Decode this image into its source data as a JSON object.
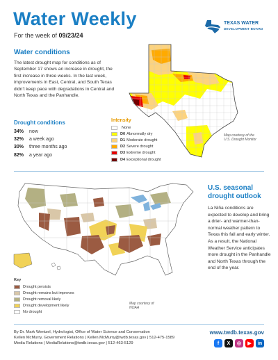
{
  "header": {
    "title": "Water Weekly",
    "subtitle_prefix": "For the week of ",
    "subtitle_date": "09/23/24",
    "logo_line1": "TEXAS WATER",
    "logo_line2": "DEVELOPMENT BOARD"
  },
  "water_conditions": {
    "heading": "Water conditions",
    "body": "The latest drought map for conditions as of September 17 shows an increase in drought, the first increase in three weeks. In the last week, improvements in East, Central, and South Texas didn't keep pace with degradations in Central and North Texas and the Panhandle."
  },
  "drought_conditions": {
    "heading": "Drought conditions",
    "items": [
      {
        "pct": "34%",
        "label": "now"
      },
      {
        "pct": "32%",
        "label": "a week ago"
      },
      {
        "pct": "30%",
        "label": "three months ago"
      },
      {
        "pct": "82%",
        "label": "a year ago"
      }
    ]
  },
  "intensity_legend": {
    "heading": "Intensity",
    "items": [
      {
        "code": "",
        "label": "None",
        "color": "#ffffff"
      },
      {
        "code": "D0",
        "label": "Abnormally dry",
        "color": "#ffff00"
      },
      {
        "code": "D1",
        "label": "Moderate drought",
        "color": "#fcd37f"
      },
      {
        "code": "D2",
        "label": "Severe drought",
        "color": "#ffaa00"
      },
      {
        "code": "D3",
        "label": "Extreme drought",
        "color": "#e60000"
      },
      {
        "code": "D4",
        "label": "Exceptional drought",
        "color": "#730000"
      }
    ]
  },
  "tx_map_credit": {
    "line1": "Map courtesy of the",
    "line2": "U.S. Drought Monitor"
  },
  "outlook": {
    "heading": "U.S. seasonal drought outlook",
    "body": "La Niña conditions are expected to develop and bring a drier- and warmer-than-normal weather pattern to Texas this fall and early winter. As a result, the National Weather Service anticipates more drought in the Panhandle and North Texas through the end of the year."
  },
  "outlook_key": {
    "heading": "Key",
    "items": [
      {
        "label": "Drought persists",
        "color": "#9b5b42"
      },
      {
        "label": "Drought remains but improves",
        "color": "#d9c7a8"
      },
      {
        "label": "Drought removal likely",
        "color": "#b3b083"
      },
      {
        "label": "Drought development likely",
        "color": "#f1d257"
      },
      {
        "label": "No drought",
        "color": "#ffffff"
      }
    ]
  },
  "us_map_credit": {
    "line1": "Map courtesy of",
    "line2": "NOAA"
  },
  "footer": {
    "line1": "By Dr. Mark Wentzel, Hydrologist, Office of Water Science and Conservation",
    "line2": "Kellen McMurry, Government Relations  |  Kellen.McMurry@twdb.texas.gov  |  512-475-1589",
    "line3": "Media Relations  |  MediaRelations@twdb.texas.gov  |  512-463-5129",
    "url": "www.twdb.texas.gov"
  },
  "socials": [
    {
      "icon": "facebook-icon",
      "glyph": "f",
      "color": "#1877f2"
    },
    {
      "icon": "x-icon",
      "glyph": "X",
      "color": "#111111"
    },
    {
      "icon": "instagram-icon",
      "glyph": "◎",
      "color": "#c13584"
    },
    {
      "icon": "youtube-icon",
      "glyph": "▶",
      "color": "#ff0000"
    },
    {
      "icon": "linkedin-icon",
      "glyph": "in",
      "color": "#0a66c2"
    }
  ]
}
